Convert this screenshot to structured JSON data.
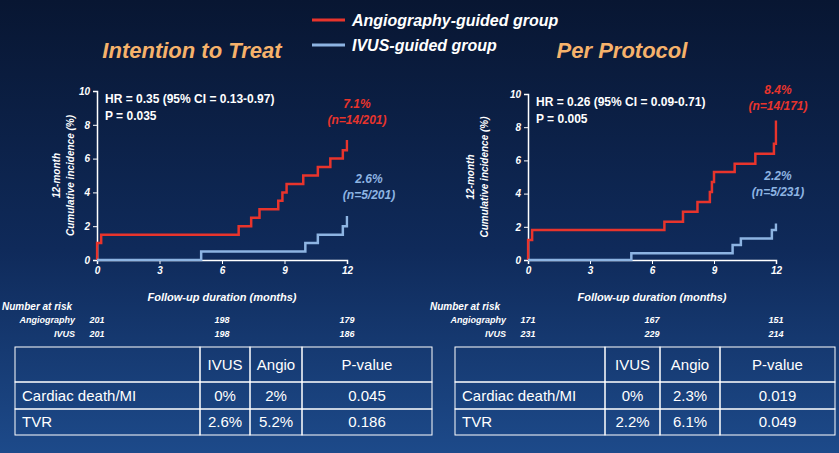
{
  "chart_data": [
    {
      "type": "line",
      "title": "Intention to Treat",
      "annotation": [
        "HR = 0.35 (95% CI = 0.13-0.97)",
        "P = 0.035"
      ],
      "x_label": "Follow-up duration (months)",
      "y_label": [
        "12-month",
        "Cumulative incidence (%)"
      ],
      "xlim": [
        0,
        12
      ],
      "xticks": [
        0,
        3,
        6,
        9,
        12
      ],
      "ylim": [
        0,
        10
      ],
      "yticks": [
        0,
        2,
        4,
        6,
        8,
        10
      ],
      "line_style": "step",
      "legend": "top",
      "series": [
        {
          "name": "Angiography-guided group",
          "color": "#e8342c",
          "x": [
            0,
            0,
            0.2,
            6.8,
            7.4,
            7.8,
            8.7,
            8.9,
            9.1,
            9.9,
            10.6,
            11.2,
            11.8,
            12
          ],
          "values": [
            0,
            1.0,
            1.5,
            2.0,
            2.5,
            3.0,
            3.5,
            4.0,
            4.5,
            5.0,
            5.5,
            6.0,
            6.5,
            7.1
          ],
          "end_label": [
            "7.1%",
            "(n=14/201)"
          ]
        },
        {
          "name": "IVUS-guided group",
          "color": "#8db4e2",
          "x": [
            0,
            5,
            10,
            10.6,
            11.8,
            12
          ],
          "values": [
            0,
            0.5,
            1.0,
            1.5,
            2.0,
            2.6
          ],
          "end_label": [
            "2.6%",
            "(n=5/201)"
          ]
        }
      ],
      "number_at_risk": {
        "title": "Number at risk",
        "x": [
          0,
          6,
          12
        ],
        "rows": [
          {
            "name": "Angiography",
            "values": [
              201,
              198,
              179
            ]
          },
          {
            "name": "IVUS",
            "values": [
              201,
              198,
              186
            ]
          }
        ]
      },
      "table": {
        "header": [
          "IVUS",
          "Angio",
          "P-value"
        ],
        "rows": [
          {
            "label": "Cardiac death/MI",
            "cells": [
              "0%",
              "2%",
              "0.045"
            ]
          },
          {
            "label": "TVR",
            "cells": [
              "2.6%",
              "5.2%",
              "0.186"
            ]
          }
        ]
      }
    },
    {
      "type": "line",
      "title": "Per Protocol",
      "annotation": [
        "HR = 0.26 (95% CI = 0.09-0.71)",
        "P = 0.005"
      ],
      "x_label": "Follow-up duration (months)",
      "y_label": [
        "12-month",
        "Cumulative incidence (%)"
      ],
      "xlim": [
        0,
        12
      ],
      "xticks": [
        0,
        3,
        6,
        9,
        12
      ],
      "ylim": [
        0,
        10
      ],
      "yticks": [
        0,
        2,
        4,
        6,
        8,
        10
      ],
      "line_style": "step",
      "series": [
        {
          "color": "#e8342c",
          "x": [
            0,
            0,
            0.2,
            6.6,
            7.5,
            8.2,
            8.8,
            8.9,
            9.0,
            10.0,
            11.0,
            11.9,
            12
          ],
          "values": [
            0,
            1.2,
            1.8,
            2.3,
            2.9,
            3.5,
            4.1,
            4.7,
            5.3,
            5.8,
            6.4,
            7.0,
            8.4
          ],
          "end_label": [
            "8.4%",
            "(n=14/171)"
          ]
        },
        {
          "color": "#8db4e2",
          "x": [
            0,
            5,
            9.9,
            10.3,
            11.8,
            12
          ],
          "values": [
            0,
            0.4,
            0.9,
            1.3,
            1.8,
            2.2
          ],
          "end_label": [
            "2.2%",
            "(n=5/231)"
          ]
        }
      ],
      "number_at_risk": {
        "title": "Number at risk",
        "x": [
          0,
          6,
          12
        ],
        "rows": [
          {
            "name": "Angiography",
            "values": [
              171,
              167,
              151
            ]
          },
          {
            "name": "IVUS",
            "values": [
              231,
              229,
              214
            ]
          }
        ]
      },
      "table": {
        "header": [
          "IVUS",
          "Angio",
          "P-value"
        ],
        "rows": [
          {
            "label": "Cardiac death/MI",
            "cells": [
              "0%",
              "2.3%",
              "0.019"
            ]
          },
          {
            "label": "TVR",
            "cells": [
              "2.2%",
              "6.1%",
              "0.049"
            ]
          }
        ]
      }
    }
  ]
}
